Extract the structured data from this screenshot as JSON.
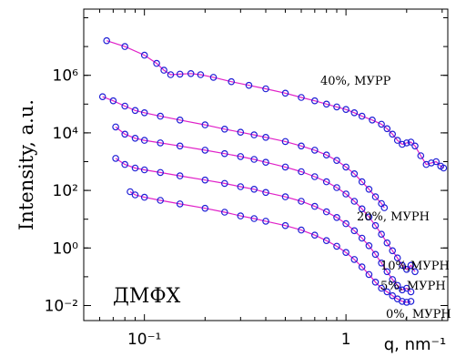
{
  "chart_data": {
    "type": "scatter",
    "title": "",
    "xlabel": "q, nm⁻¹",
    "ylabel": "Intensity, a.u.",
    "x_scale": "log",
    "y_scale": "log",
    "xlim": [
      0.05,
      3.2
    ],
    "ylim": [
      0.003,
      200000000
    ],
    "x_ticks": [
      {
        "value": 0.1,
        "label": "10⁻¹"
      },
      {
        "value": 1,
        "label": "1"
      }
    ],
    "y_ticks": [
      {
        "value": 0.01,
        "label": "10⁻²"
      },
      {
        "value": 1,
        "label": "10⁰"
      },
      {
        "value": 100,
        "label": "10²"
      },
      {
        "value": 10000,
        "label": "10⁴"
      },
      {
        "value": 1000000,
        "label": "10⁶"
      }
    ],
    "grid": false,
    "annotation": "ДМФХ",
    "marker_color": "#1f1fd6",
    "fit_color": "#e020c8",
    "series": [
      {
        "name": "40%, МУРР",
        "points": [
          [
            0.065,
            16000000.0
          ],
          [
            0.08,
            10000000.0
          ],
          [
            0.1,
            5000000.0
          ],
          [
            0.115,
            2600000.0
          ],
          [
            0.125,
            1500000.0
          ],
          [
            0.135,
            1050000.0
          ],
          [
            0.15,
            1100000.0
          ],
          [
            0.17,
            1150000.0
          ],
          [
            0.19,
            1050000.0
          ],
          [
            0.22,
            850000.0
          ],
          [
            0.27,
            600000.0
          ],
          [
            0.33,
            450000.0
          ],
          [
            0.4,
            340000.0
          ],
          [
            0.5,
            240000.0
          ],
          [
            0.6,
            170000.0
          ],
          [
            0.7,
            130000.0
          ],
          [
            0.8,
            100000.0
          ],
          [
            0.9,
            80000.0
          ],
          [
            1.0,
            65000.0
          ],
          [
            1.1,
            50000.0
          ],
          [
            1.2,
            38000.0
          ],
          [
            1.35,
            28000.0
          ],
          [
            1.5,
            20000.0
          ],
          [
            1.6,
            14000.0
          ],
          [
            1.7,
            9000.0
          ],
          [
            1.8,
            5500.0
          ],
          [
            1.9,
            4000.0
          ],
          [
            2.0,
            4500.0
          ],
          [
            2.1,
            4800.0
          ],
          [
            2.2,
            3500.0
          ],
          [
            2.35,
            1600.0
          ],
          [
            2.5,
            800.0
          ],
          [
            2.65,
            900.0
          ],
          [
            2.8,
            1000.0
          ],
          [
            2.95,
            700.0
          ],
          [
            3.05,
            600.0
          ]
        ]
      },
      {
        "name": "20%, МУРН",
        "points": [
          [
            0.062,
            180000.0
          ],
          [
            0.07,
            130000.0
          ],
          [
            0.08,
            85000.0
          ],
          [
            0.09,
            60000.0
          ],
          [
            0.1,
            50000.0
          ],
          [
            0.12,
            38000.0
          ],
          [
            0.15,
            28000.0
          ],
          [
            0.2,
            19000.0
          ],
          [
            0.25,
            13500.0
          ],
          [
            0.3,
            10500.0
          ],
          [
            0.35,
            8500.0
          ],
          [
            0.4,
            7000.0
          ],
          [
            0.5,
            5000.0
          ],
          [
            0.6,
            3500.0
          ],
          [
            0.7,
            2500.0
          ],
          [
            0.8,
            1700.0
          ],
          [
            0.9,
            1100.0
          ],
          [
            1.0,
            650.0
          ],
          [
            1.1,
            380.0
          ],
          [
            1.2,
            200.0
          ],
          [
            1.3,
            110.0
          ],
          [
            1.4,
            60.0
          ],
          [
            1.5,
            35.0
          ],
          [
            1.55,
            25.0
          ]
        ]
      },
      {
        "name": "10%,МУРН",
        "points": [
          [
            0.072,
            16000.0
          ],
          [
            0.08,
            9000.0
          ],
          [
            0.09,
            6500.0
          ],
          [
            0.1,
            5500.0
          ],
          [
            0.12,
            4500.0
          ],
          [
            0.15,
            3500.0
          ],
          [
            0.2,
            2500.0
          ],
          [
            0.25,
            1900.0
          ],
          [
            0.3,
            1500.0
          ],
          [
            0.35,
            1200.0
          ],
          [
            0.4,
            950.0
          ],
          [
            0.5,
            650.0
          ],
          [
            0.6,
            450.0
          ],
          [
            0.7,
            300.0
          ],
          [
            0.8,
            200.0
          ],
          [
            0.9,
            125.0
          ],
          [
            1.0,
            75.0
          ],
          [
            1.1,
            42.0
          ],
          [
            1.2,
            23.0
          ],
          [
            1.3,
            12.0
          ],
          [
            1.4,
            6.0
          ],
          [
            1.5,
            3.0
          ],
          [
            1.6,
            1.5
          ],
          [
            1.7,
            0.8
          ],
          [
            1.8,
            0.45
          ],
          [
            1.9,
            0.25
          ],
          [
            2.0,
            0.18
          ],
          [
            2.1,
            0.25
          ],
          [
            2.2,
            0.15
          ]
        ]
      },
      {
        "name": "5%, МУРН",
        "points": [
          [
            0.072,
            1300.0
          ],
          [
            0.08,
            800.0
          ],
          [
            0.09,
            600.0
          ],
          [
            0.1,
            520.0
          ],
          [
            0.12,
            420.0
          ],
          [
            0.15,
            320.0
          ],
          [
            0.2,
            230.0
          ],
          [
            0.25,
            175.0
          ],
          [
            0.3,
            135.0
          ],
          [
            0.35,
            110.0
          ],
          [
            0.4,
            85.0
          ],
          [
            0.5,
            60.0
          ],
          [
            0.6,
            42.0
          ],
          [
            0.7,
            28.0
          ],
          [
            0.8,
            18.0
          ],
          [
            0.9,
            11.5
          ],
          [
            1.0,
            7.0
          ],
          [
            1.1,
            4.0
          ],
          [
            1.2,
            2.2
          ],
          [
            1.3,
            1.2
          ],
          [
            1.4,
            0.6
          ],
          [
            1.5,
            0.3
          ],
          [
            1.6,
            0.15
          ],
          [
            1.7,
            0.08
          ],
          [
            1.8,
            0.05
          ],
          [
            1.9,
            0.035
          ],
          [
            2.0,
            0.04
          ],
          [
            2.1,
            0.03
          ]
        ]
      },
      {
        "name": "0%, МУРН",
        "points": [
          [
            0.085,
            90
          ],
          [
            0.09,
            70
          ],
          [
            0.1,
            58
          ],
          [
            0.12,
            45
          ],
          [
            0.15,
            34
          ],
          [
            0.2,
            24
          ],
          [
            0.25,
            17.5
          ],
          [
            0.3,
            13
          ],
          [
            0.35,
            10.5
          ],
          [
            0.4,
            8.5
          ],
          [
            0.5,
            6.0
          ],
          [
            0.6,
            4.2
          ],
          [
            0.7,
            2.8
          ],
          [
            0.8,
            1.8
          ],
          [
            0.9,
            1.15
          ],
          [
            1.0,
            0.7
          ],
          [
            1.1,
            0.4
          ],
          [
            1.2,
            0.22
          ],
          [
            1.3,
            0.12
          ],
          [
            1.4,
            0.065
          ],
          [
            1.5,
            0.04
          ],
          [
            1.6,
            0.03
          ],
          [
            1.7,
            0.022
          ],
          [
            1.8,
            0.017
          ],
          [
            1.9,
            0.014
          ],
          [
            2.0,
            0.013
          ],
          [
            2.1,
            0.014
          ]
        ]
      }
    ]
  }
}
